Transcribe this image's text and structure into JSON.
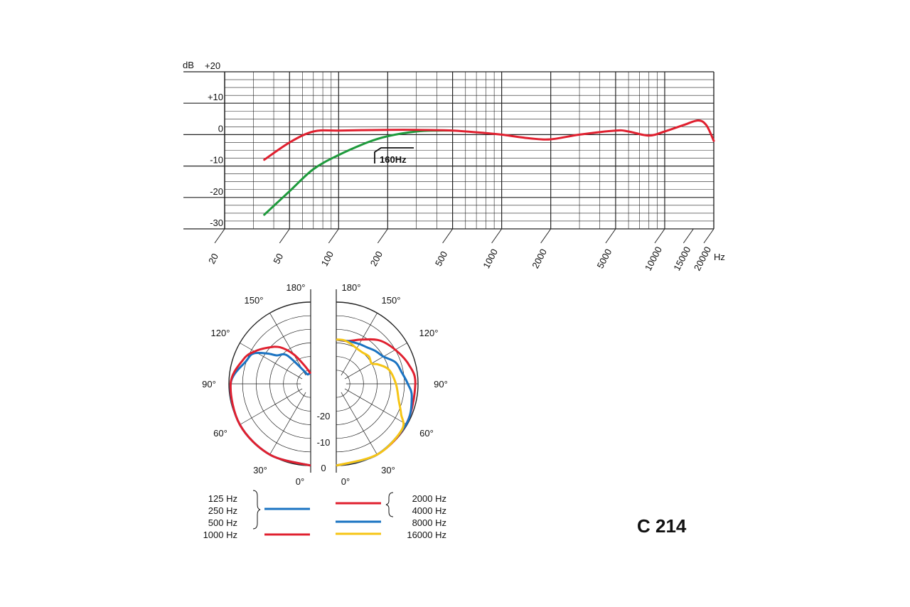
{
  "model_label": "C 214",
  "colors": {
    "red": "#e0202f",
    "green": "#1e9a3c",
    "blue": "#1a73c2",
    "yellow": "#f6c515",
    "grid": "#222222"
  },
  "chart_data": [
    {
      "type": "line",
      "kind": "frequency-response",
      "xscale": "log",
      "xlim": [
        20,
        20000
      ],
      "ylim": [
        -30,
        20
      ],
      "x_unit": "Hz",
      "y_unit": "dB",
      "x_ticks": [
        20,
        50,
        100,
        200,
        500,
        1000,
        2000,
        5000,
        10000,
        15000,
        20000
      ],
      "x_tick_labels": [
        "20",
        "50",
        "100",
        "200",
        "500",
        "1000",
        "2000",
        "5000",
        "10000",
        "15000",
        "20000"
      ],
      "y_ticks": [
        20,
        10,
        0,
        -10,
        -20,
        -30
      ],
      "y_tick_labels": [
        "+20",
        "+10",
        "0",
        "-10",
        "-20",
        "-30"
      ],
      "y_axis_unit_label": "dB",
      "x_axis_unit_label": "Hz",
      "grid": true,
      "annotation": "160Hz",
      "series": [
        {
          "color": "red",
          "points": [
            [
              35,
              -8
            ],
            [
              50,
              -2.5
            ],
            [
              70,
              1
            ],
            [
              100,
              1.3
            ],
            [
              200,
              1.5
            ],
            [
              300,
              1.5
            ],
            [
              500,
              1.3
            ],
            [
              800,
              0.5
            ],
            [
              1000,
              0
            ],
            [
              1500,
              -1.2
            ],
            [
              2000,
              -1.5
            ],
            [
              3000,
              0
            ],
            [
              5000,
              1.3
            ],
            [
              6000,
              1
            ],
            [
              8000,
              -0.3
            ],
            [
              10000,
              1
            ],
            [
              13000,
              3
            ],
            [
              16000,
              4.5
            ],
            [
              18000,
              3
            ],
            [
              20000,
              -2
            ]
          ]
        },
        {
          "color": "green",
          "points": [
            [
              35,
              -25.5
            ],
            [
              50,
              -18
            ],
            [
              70,
              -11
            ],
            [
              100,
              -6.5
            ],
            [
              150,
              -2.5
            ],
            [
              200,
              -0.5
            ],
            [
              300,
              1
            ],
            [
              400,
              1.3
            ],
            [
              500,
              1.3
            ]
          ]
        }
      ]
    },
    {
      "type": "polar",
      "kind": "polar-pattern",
      "radial_unit": "dB",
      "radial_ticks": [
        -20,
        -10,
        0
      ],
      "radial_tick_labels": [
        "-20",
        "-10",
        "0"
      ],
      "angle_ticks": [
        0,
        30,
        60,
        90,
        120,
        150,
        180
      ],
      "angle_tick_labels": [
        "0°",
        "30°",
        "60°",
        "90°",
        "120°",
        "150°",
        "180°"
      ],
      "left_half_series": [
        {
          "color": "blue",
          "points": [
            [
              0,
              0
            ],
            [
              30,
              0
            ],
            [
              60,
              0
            ],
            [
              90,
              -0.5
            ],
            [
              110,
              -4
            ],
            [
              118,
              -5
            ],
            [
              125,
              -8.5
            ],
            [
              130,
              -11
            ],
            [
              140,
              -13
            ],
            [
              150,
              -19
            ],
            [
              160,
              -21
            ],
            [
              170,
              -21
            ],
            [
              180,
              -21
            ]
          ]
        },
        {
          "color": "red",
          "points": [
            [
              0,
              0
            ],
            [
              30,
              0
            ],
            [
              60,
              0
            ],
            [
              90,
              -0.5
            ],
            [
              110,
              -3
            ],
            [
              120,
              -5
            ],
            [
              130,
              -7.5
            ],
            [
              140,
              -10
            ],
            [
              150,
              -14
            ],
            [
              160,
              -18
            ],
            [
              170,
              -20
            ],
            [
              180,
              -21
            ]
          ]
        }
      ],
      "right_half_series": [
        {
          "color": "red",
          "points": [
            [
              0,
              0
            ],
            [
              30,
              0
            ],
            [
              60,
              -0.3
            ],
            [
              90,
              -0.8
            ],
            [
              105,
              -2
            ],
            [
              120,
              -4
            ],
            [
              135,
              -6
            ],
            [
              150,
              -9
            ],
            [
              165,
              -11
            ],
            [
              180,
              -11
            ]
          ]
        },
        {
          "color": "blue",
          "points": [
            [
              0,
              0
            ],
            [
              30,
              0
            ],
            [
              60,
              -0.3
            ],
            [
              80,
              -1.5
            ],
            [
              90,
              -3
            ],
            [
              100,
              -4.5
            ],
            [
              110,
              -5.5
            ],
            [
              120,
              -8
            ],
            [
              130,
              -9
            ],
            [
              140,
              -10
            ],
            [
              150,
              -10.5
            ],
            [
              165,
              -11
            ],
            [
              180,
              -11
            ]
          ]
        },
        {
          "color": "yellow",
          "points": [
            [
              0,
              0
            ],
            [
              30,
              0
            ],
            [
              55,
              -0.5
            ],
            [
              65,
              -3
            ],
            [
              75,
              -5
            ],
            [
              90,
              -6.5
            ],
            [
              105,
              -8
            ],
            [
              115,
              -10.5
            ],
            [
              120,
              -12
            ],
            [
              130,
              -11.5
            ],
            [
              140,
              -12
            ],
            [
              150,
              -12
            ],
            [
              160,
              -11.5
            ],
            [
              170,
              -11
            ],
            [
              180,
              -11
            ]
          ]
        }
      ]
    }
  ],
  "legend": {
    "left": {
      "labels": [
        "125 Hz",
        "250 Hz",
        "500 Hz",
        "1000 Hz"
      ],
      "swatches": [
        {
          "color": "blue"
        },
        {
          "color": "red"
        }
      ]
    },
    "right": {
      "labels": [
        "2000 Hz",
        "4000 Hz",
        "8000 Hz",
        "16000 Hz"
      ],
      "swatches": [
        {
          "color": "red"
        },
        {
          "color": "blue"
        },
        {
          "color": "yellow"
        }
      ]
    }
  }
}
